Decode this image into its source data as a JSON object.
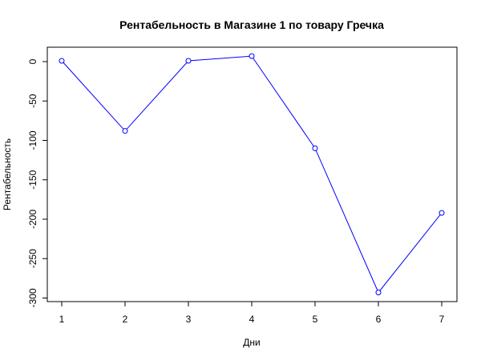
{
  "chart_data": {
    "type": "line",
    "title": "Рентабельность в Магазине 1 по товару Гречка",
    "xlabel": "Дни",
    "ylabel": "Рентабельность",
    "x": [
      1,
      2,
      3,
      4,
      5,
      6,
      7
    ],
    "y": [
      1,
      -88,
      1,
      7,
      -110,
      -293,
      -192
    ],
    "x_ticks": [
      "1",
      "2",
      "3",
      "4",
      "5",
      "6",
      "7"
    ],
    "y_ticks": [
      "0",
      "-50",
      "-100",
      "-150",
      "-200",
      "-250",
      "-300"
    ],
    "y_tick_values": [
      0,
      -50,
      -100,
      -150,
      -200,
      -250,
      -300
    ],
    "xlim": [
      1,
      7
    ],
    "ylim": [
      -300,
      0
    ],
    "grid": false,
    "series_color": "#0000ff",
    "markers": "open-circle"
  }
}
